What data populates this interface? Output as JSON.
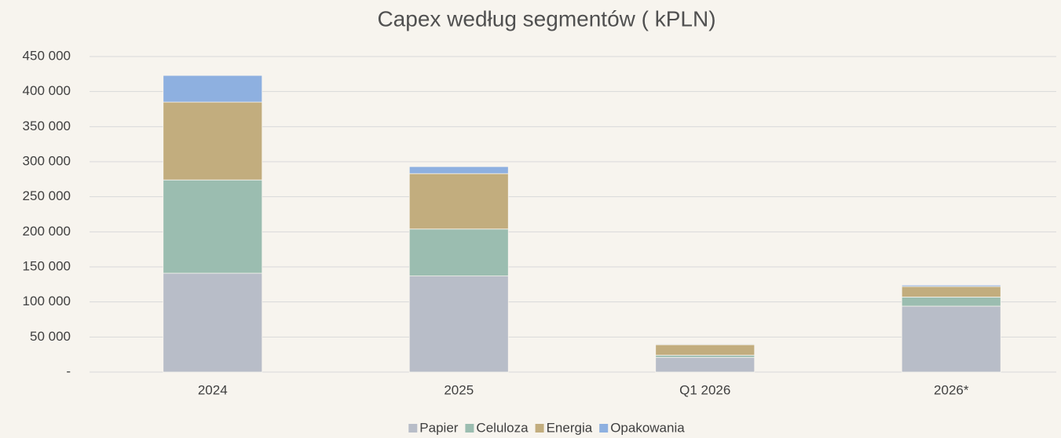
{
  "chart_data": {
    "type": "stacked_bar",
    "title": "Capex według segmentów ( kPLN)",
    "categories": [
      "2024",
      "2025",
      "Q1 2026",
      "2026*"
    ],
    "series": [
      {
        "name": "Papier",
        "color": "#b8bdc8",
        "values": [
          141000,
          137000,
          21000,
          94000
        ]
      },
      {
        "name": "Celuloza",
        "color": "#9bbdb0",
        "values": [
          133000,
          67000,
          3000,
          13000
        ]
      },
      {
        "name": "Energia",
        "color": "#c2ad7e",
        "values": [
          111000,
          79000,
          15000,
          15000
        ]
      },
      {
        "name": "Opakowania",
        "color": "#8eb0e0",
        "values": [
          38000,
          10000,
          1000,
          2000
        ]
      }
    ],
    "ylim": [
      0,
      450000
    ],
    "yticks": [
      {
        "value": 0,
        "label": "-"
      },
      {
        "value": 50000,
        "label": "50 000"
      },
      {
        "value": 100000,
        "label": "100 000"
      },
      {
        "value": 150000,
        "label": "150 000"
      },
      {
        "value": 200000,
        "label": "200 000"
      },
      {
        "value": 250000,
        "label": "250 000"
      },
      {
        "value": 300000,
        "label": "300 000"
      },
      {
        "value": 350000,
        "label": "350 000"
      },
      {
        "value": 400000,
        "label": "400 000"
      },
      {
        "value": 450000,
        "label": "450 000"
      }
    ],
    "grid": true,
    "legend": "bottom"
  }
}
